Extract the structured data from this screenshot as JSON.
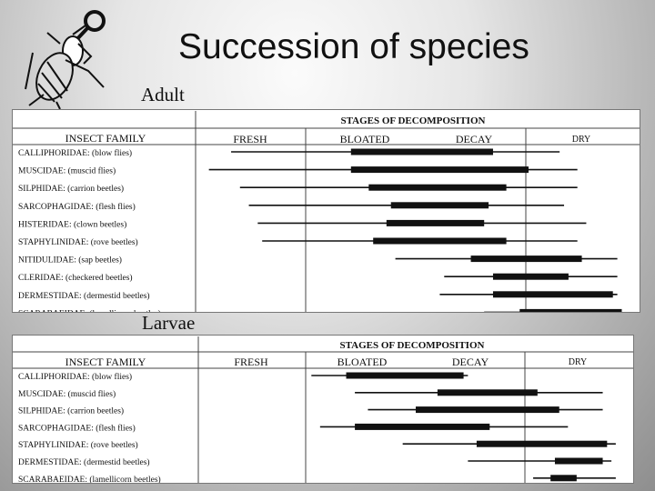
{
  "title": "Succession of species",
  "sections": {
    "adult_label": "Adult",
    "larvae_label": "Larvae"
  },
  "headers": {
    "insect_family": "INSECT FAMILY",
    "stages": "STAGES OF DECOMPOSITION",
    "fresh": "FRESH",
    "bloated": "BLOATED",
    "decay": "DECAY",
    "dry": "DRY"
  },
  "colors": {
    "bar": "#111111",
    "grid": "#444444"
  },
  "adult": {
    "families": [
      {
        "name": "CALLIPHORIDAE: (blow flies)",
        "thin": [
          0.08,
          0.82
        ],
        "thick": [
          0.35,
          0.67
        ]
      },
      {
        "name": "MUSCIDAE: (muscid flies)",
        "thin": [
          0.03,
          0.86
        ],
        "thick": [
          0.35,
          0.75
        ]
      },
      {
        "name": "SILPHIDAE: (carrion beetles)",
        "thin": [
          0.1,
          0.86
        ],
        "thick": [
          0.39,
          0.7
        ]
      },
      {
        "name": "SARCOPHAGIDAE: (flesh flies)",
        "thin": [
          0.12,
          0.83
        ],
        "thick": [
          0.44,
          0.66
        ]
      },
      {
        "name": "HISTERIDAE: (clown beetles)",
        "thin": [
          0.14,
          0.88
        ],
        "thick": [
          0.43,
          0.65
        ]
      },
      {
        "name": "STAPHYLINIDAE: (rove beetles)",
        "thin": [
          0.15,
          0.86
        ],
        "thick": [
          0.4,
          0.7
        ]
      },
      {
        "name": "NITIDULIDAE: (sap beetles)",
        "thin": [
          0.45,
          0.95
        ],
        "thick": [
          0.62,
          0.87
        ]
      },
      {
        "name": "CLERIDAE: (checkered beetles)",
        "thin": [
          0.56,
          0.95
        ],
        "thick": [
          0.67,
          0.84
        ]
      },
      {
        "name": "DERMESTIDAE: (dermestid beetles)",
        "thin": [
          0.55,
          0.95
        ],
        "thick": [
          0.67,
          0.94
        ]
      },
      {
        "name": "SCARABAEIDAE: (lamellicorn beetles)",
        "thin": [
          0.65,
          0.96
        ],
        "thick": [
          0.73,
          0.96
        ]
      }
    ]
  },
  "larvae": {
    "families": [
      {
        "name": "CALLIPHORIDAE: (blow flies)",
        "thin": [
          0.26,
          0.62
        ],
        "thick": [
          0.34,
          0.61
        ]
      },
      {
        "name": "MUSCIDAE: (muscid flies)",
        "thin": [
          0.36,
          0.93
        ],
        "thick": [
          0.55,
          0.78
        ]
      },
      {
        "name": "SILPHIDAE: (carrion beetles)",
        "thin": [
          0.39,
          0.93
        ],
        "thick": [
          0.5,
          0.83
        ]
      },
      {
        "name": "SARCOPHAGIDAE: (flesh flies)",
        "thin": [
          0.28,
          0.85
        ],
        "thick": [
          0.36,
          0.67
        ]
      },
      {
        "name": "STAPHYLINIDAE: (rove beetles)",
        "thin": [
          0.47,
          0.96
        ],
        "thick": [
          0.64,
          0.94
        ]
      },
      {
        "name": "DERMESTIDAE: (dermestid beetles)",
        "thin": [
          0.62,
          0.95
        ],
        "thick": [
          0.82,
          0.93
        ]
      },
      {
        "name": "SCARABAEIDAE: (lamellicorn beetles)",
        "thin": [
          0.77,
          0.96
        ],
        "thick": [
          0.81,
          0.87
        ]
      }
    ]
  }
}
